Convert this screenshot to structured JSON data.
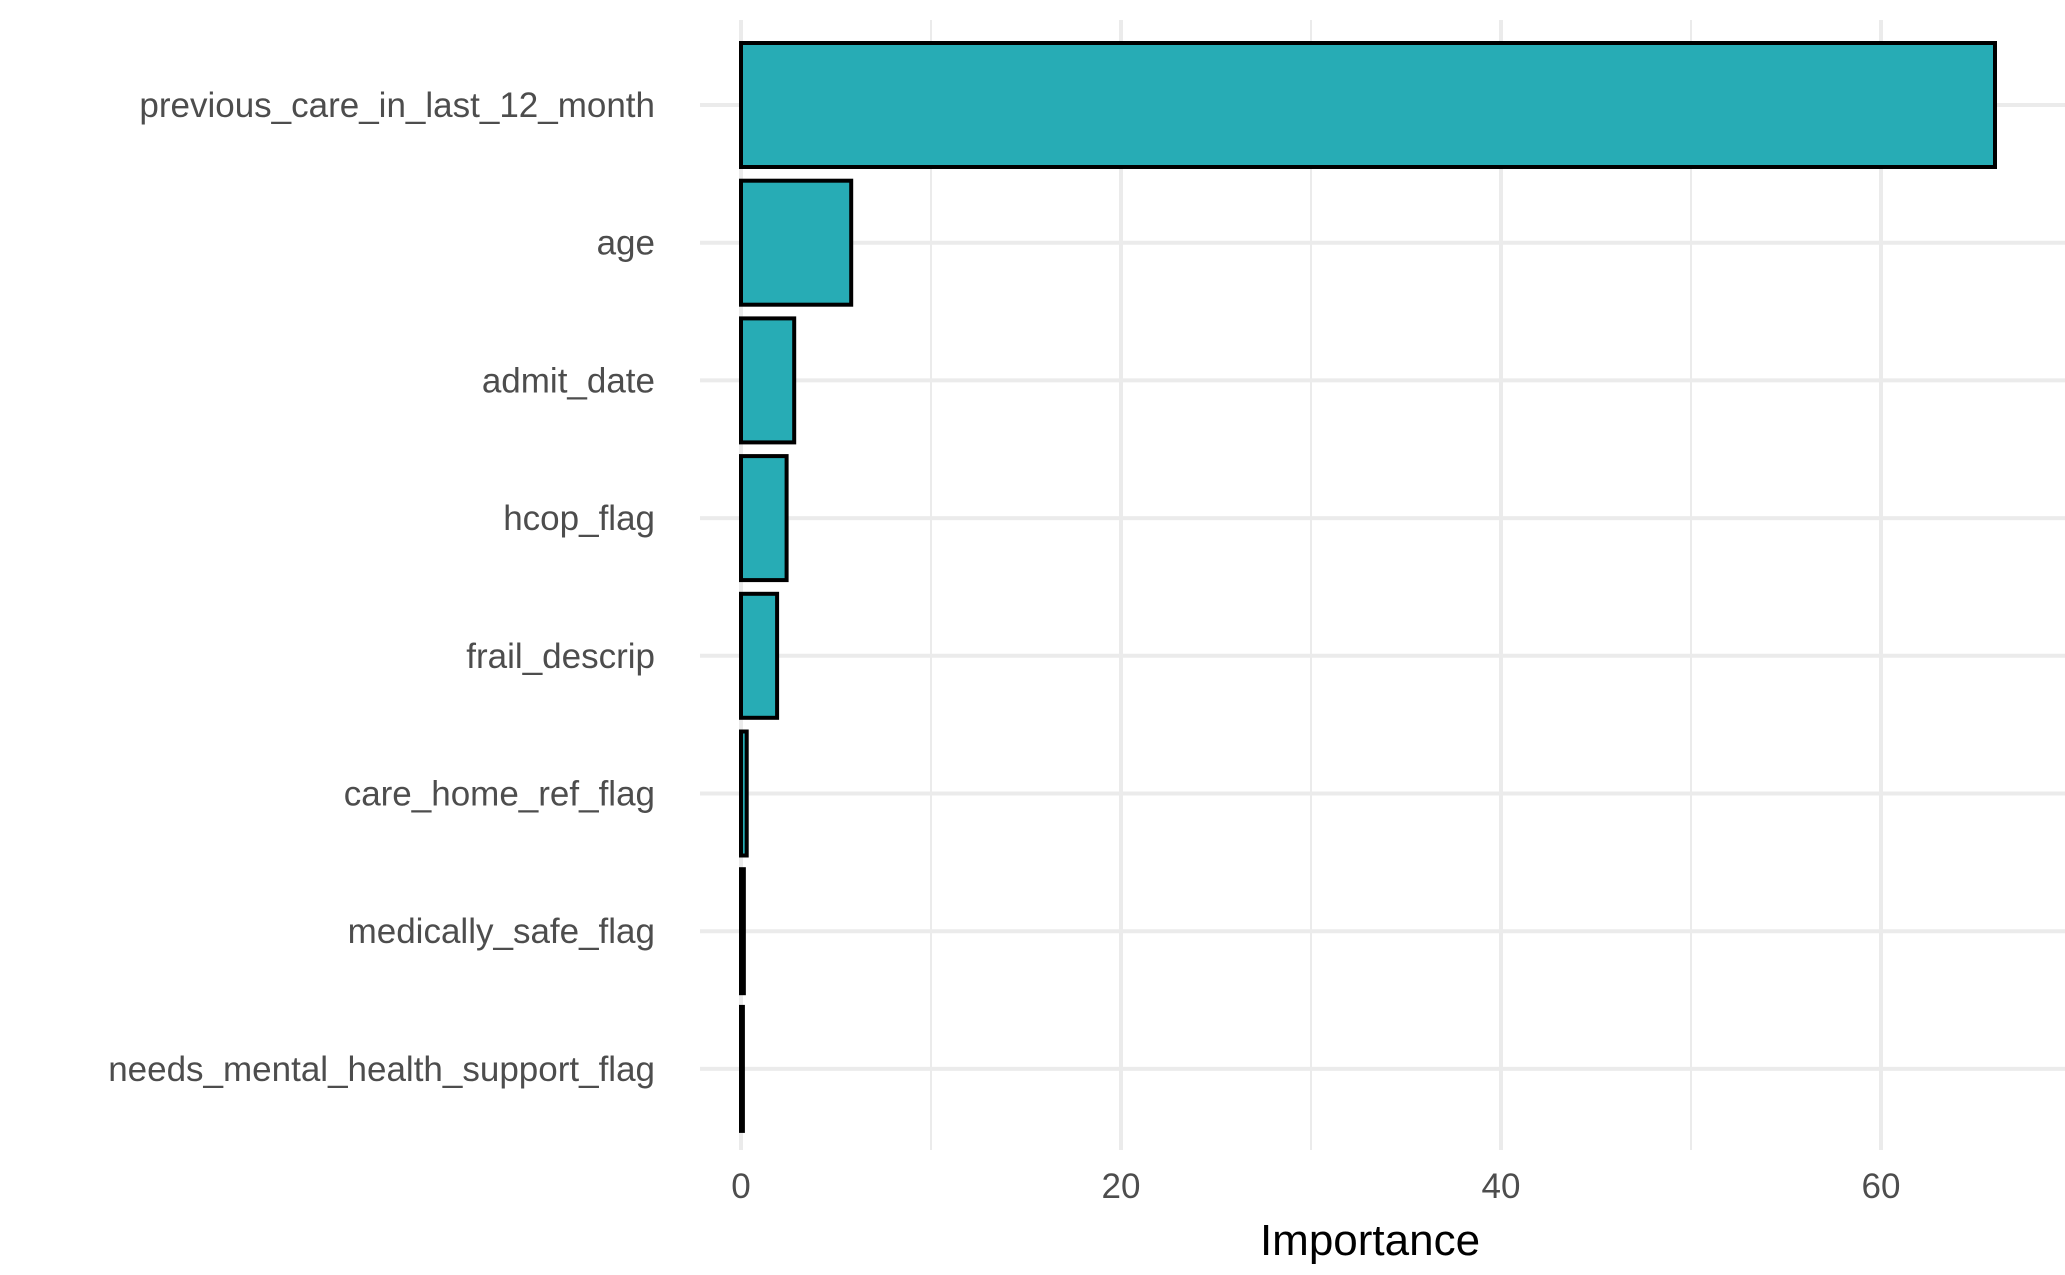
{
  "chart_data": {
    "type": "bar",
    "orientation": "horizontal",
    "categories": [
      "previous_care_in_last_12_month",
      "age",
      "admit_date",
      "hcop_flag",
      "frail_descrip",
      "care_home_ref_flag",
      "medically_safe_flag",
      "needs_mental_health_support_flag"
    ],
    "values": [
      66.0,
      5.8,
      2.8,
      2.4,
      1.9,
      0.3,
      0.15,
      0.1
    ],
    "xlabel": "Importance",
    "ylabel": "",
    "title": "",
    "xlim": [
      -3,
      69
    ],
    "x_ticks": [
      0,
      20,
      40,
      60
    ],
    "x_tick_labels": [
      "0",
      "20",
      "40",
      "60"
    ],
    "grid": true,
    "legend": "none",
    "colors": {
      "bar_fill": "#27acb5",
      "bar_stroke": "#000000",
      "grid": "#ebebeb",
      "label_text": "#4d4d4d",
      "axis_title": "#000000"
    }
  }
}
